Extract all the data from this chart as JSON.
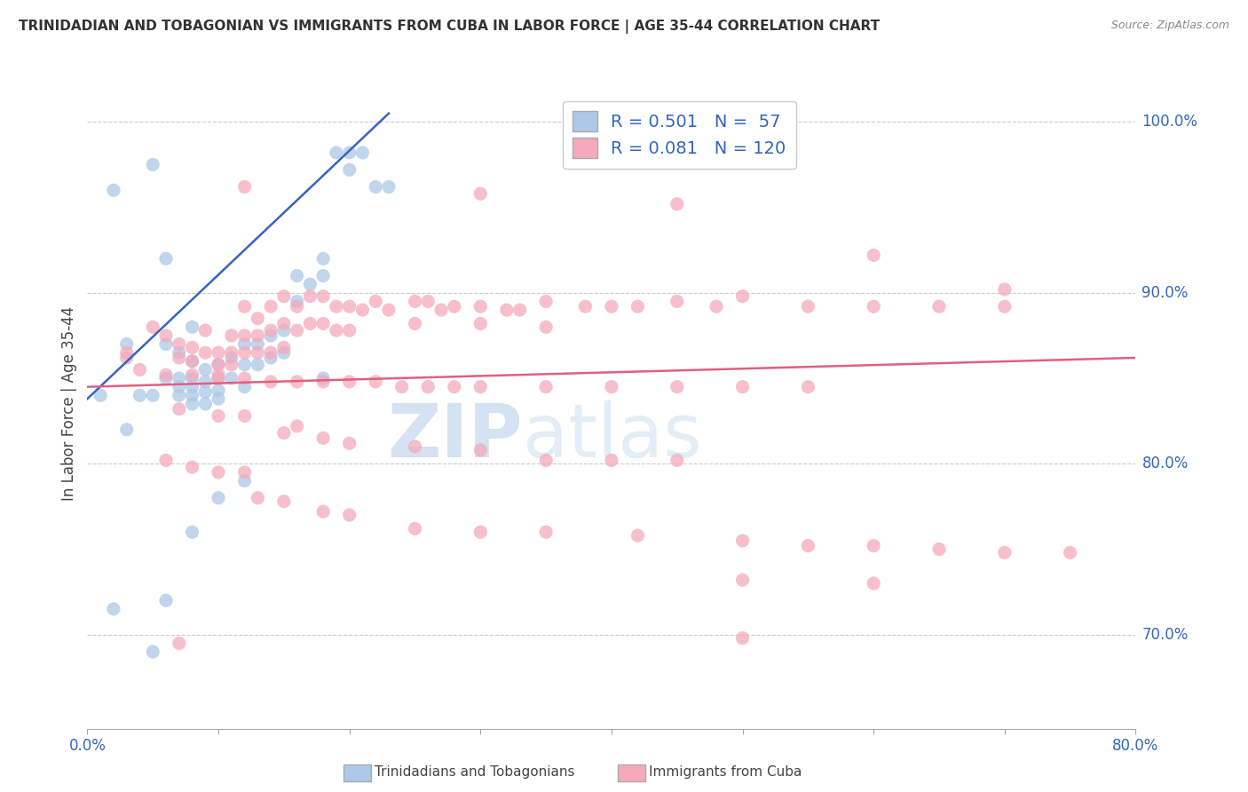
{
  "title": "TRINIDADIAN AND TOBAGONIAN VS IMMIGRANTS FROM CUBA IN LABOR FORCE | AGE 35-44 CORRELATION CHART",
  "source": "Source: ZipAtlas.com",
  "ylabel": "In Labor Force | Age 35-44",
  "ylabel_right_ticks": [
    "70.0%",
    "80.0%",
    "90.0%",
    "100.0%"
  ],
  "ylabel_right_vals": [
    0.7,
    0.8,
    0.9,
    1.0
  ],
  "blue_R": 0.501,
  "blue_N": 57,
  "pink_R": 0.081,
  "pink_N": 120,
  "blue_color": "#adc8e8",
  "blue_line_color": "#3366bb",
  "pink_color": "#f5aabb",
  "pink_line_color": "#e06080",
  "watermark_zip": "ZIP",
  "watermark_atlas": "atlas",
  "legend_label_blue": "Trinidadians and Tobagonians",
  "legend_label_pink": "Immigrants from Cuba",
  "blue_points": [
    [
      0.01,
      0.84
    ],
    [
      0.02,
      0.96
    ],
    [
      0.03,
      0.87
    ],
    [
      0.03,
      0.82
    ],
    [
      0.04,
      0.84
    ],
    [
      0.05,
      0.975
    ],
    [
      0.05,
      0.84
    ],
    [
      0.06,
      0.92
    ],
    [
      0.06,
      0.87
    ],
    [
      0.06,
      0.85
    ],
    [
      0.07,
      0.865
    ],
    [
      0.07,
      0.85
    ],
    [
      0.07,
      0.845
    ],
    [
      0.07,
      0.84
    ],
    [
      0.08,
      0.88
    ],
    [
      0.08,
      0.86
    ],
    [
      0.08,
      0.85
    ],
    [
      0.08,
      0.845
    ],
    [
      0.08,
      0.84
    ],
    [
      0.08,
      0.835
    ],
    [
      0.09,
      0.855
    ],
    [
      0.09,
      0.848
    ],
    [
      0.09,
      0.842
    ],
    [
      0.09,
      0.835
    ],
    [
      0.1,
      0.858
    ],
    [
      0.1,
      0.85
    ],
    [
      0.1,
      0.843
    ],
    [
      0.1,
      0.838
    ],
    [
      0.11,
      0.862
    ],
    [
      0.11,
      0.85
    ],
    [
      0.12,
      0.87
    ],
    [
      0.12,
      0.858
    ],
    [
      0.12,
      0.845
    ],
    [
      0.13,
      0.87
    ],
    [
      0.13,
      0.858
    ],
    [
      0.14,
      0.862
    ],
    [
      0.14,
      0.875
    ],
    [
      0.15,
      0.878
    ],
    [
      0.15,
      0.865
    ],
    [
      0.16,
      0.91
    ],
    [
      0.16,
      0.895
    ],
    [
      0.17,
      0.905
    ],
    [
      0.18,
      0.92
    ],
    [
      0.18,
      0.91
    ],
    [
      0.19,
      0.982
    ],
    [
      0.2,
      0.982
    ],
    [
      0.2,
      0.972
    ],
    [
      0.21,
      0.982
    ],
    [
      0.22,
      0.962
    ],
    [
      0.23,
      0.962
    ],
    [
      0.06,
      0.72
    ],
    [
      0.08,
      0.76
    ],
    [
      0.1,
      0.78
    ],
    [
      0.12,
      0.79
    ],
    [
      0.05,
      0.69
    ],
    [
      0.02,
      0.715
    ],
    [
      0.18,
      0.85
    ]
  ],
  "pink_points": [
    [
      0.05,
      0.88
    ],
    [
      0.06,
      0.875
    ],
    [
      0.07,
      0.87
    ],
    [
      0.07,
      0.862
    ],
    [
      0.08,
      0.868
    ],
    [
      0.08,
      0.86
    ],
    [
      0.09,
      0.878
    ],
    [
      0.09,
      0.865
    ],
    [
      0.1,
      0.865
    ],
    [
      0.1,
      0.858
    ],
    [
      0.1,
      0.852
    ],
    [
      0.11,
      0.875
    ],
    [
      0.11,
      0.865
    ],
    [
      0.11,
      0.858
    ],
    [
      0.12,
      0.892
    ],
    [
      0.12,
      0.875
    ],
    [
      0.12,
      0.865
    ],
    [
      0.13,
      0.885
    ],
    [
      0.13,
      0.875
    ],
    [
      0.13,
      0.865
    ],
    [
      0.14,
      0.892
    ],
    [
      0.14,
      0.878
    ],
    [
      0.14,
      0.865
    ],
    [
      0.15,
      0.898
    ],
    [
      0.15,
      0.882
    ],
    [
      0.15,
      0.868
    ],
    [
      0.16,
      0.892
    ],
    [
      0.16,
      0.878
    ],
    [
      0.17,
      0.898
    ],
    [
      0.17,
      0.882
    ],
    [
      0.18,
      0.898
    ],
    [
      0.18,
      0.882
    ],
    [
      0.19,
      0.892
    ],
    [
      0.19,
      0.878
    ],
    [
      0.2,
      0.892
    ],
    [
      0.2,
      0.878
    ],
    [
      0.21,
      0.89
    ],
    [
      0.22,
      0.895
    ],
    [
      0.23,
      0.89
    ],
    [
      0.25,
      0.895
    ],
    [
      0.25,
      0.882
    ],
    [
      0.26,
      0.895
    ],
    [
      0.27,
      0.89
    ],
    [
      0.28,
      0.892
    ],
    [
      0.3,
      0.892
    ],
    [
      0.3,
      0.882
    ],
    [
      0.32,
      0.89
    ],
    [
      0.33,
      0.89
    ],
    [
      0.35,
      0.895
    ],
    [
      0.35,
      0.88
    ],
    [
      0.38,
      0.892
    ],
    [
      0.4,
      0.892
    ],
    [
      0.42,
      0.892
    ],
    [
      0.45,
      0.895
    ],
    [
      0.48,
      0.892
    ],
    [
      0.5,
      0.898
    ],
    [
      0.55,
      0.892
    ],
    [
      0.6,
      0.892
    ],
    [
      0.65,
      0.892
    ],
    [
      0.7,
      0.892
    ],
    [
      0.03,
      0.862
    ],
    [
      0.04,
      0.855
    ],
    [
      0.06,
      0.852
    ],
    [
      0.08,
      0.852
    ],
    [
      0.1,
      0.85
    ],
    [
      0.12,
      0.85
    ],
    [
      0.14,
      0.848
    ],
    [
      0.16,
      0.848
    ],
    [
      0.18,
      0.848
    ],
    [
      0.2,
      0.848
    ],
    [
      0.22,
      0.848
    ],
    [
      0.24,
      0.845
    ],
    [
      0.26,
      0.845
    ],
    [
      0.28,
      0.845
    ],
    [
      0.3,
      0.845
    ],
    [
      0.35,
      0.845
    ],
    [
      0.4,
      0.845
    ],
    [
      0.45,
      0.845
    ],
    [
      0.5,
      0.845
    ],
    [
      0.55,
      0.845
    ],
    [
      0.07,
      0.832
    ],
    [
      0.1,
      0.828
    ],
    [
      0.12,
      0.828
    ],
    [
      0.15,
      0.818
    ],
    [
      0.16,
      0.822
    ],
    [
      0.18,
      0.815
    ],
    [
      0.2,
      0.812
    ],
    [
      0.25,
      0.81
    ],
    [
      0.3,
      0.808
    ],
    [
      0.35,
      0.802
    ],
    [
      0.4,
      0.802
    ],
    [
      0.45,
      0.802
    ],
    [
      0.06,
      0.802
    ],
    [
      0.08,
      0.798
    ],
    [
      0.1,
      0.795
    ],
    [
      0.12,
      0.795
    ],
    [
      0.13,
      0.78
    ],
    [
      0.15,
      0.778
    ],
    [
      0.18,
      0.772
    ],
    [
      0.2,
      0.77
    ],
    [
      0.25,
      0.762
    ],
    [
      0.3,
      0.76
    ],
    [
      0.35,
      0.76
    ],
    [
      0.42,
      0.758
    ],
    [
      0.5,
      0.755
    ],
    [
      0.55,
      0.752
    ],
    [
      0.6,
      0.752
    ],
    [
      0.65,
      0.75
    ],
    [
      0.7,
      0.748
    ],
    [
      0.75,
      0.748
    ],
    [
      0.5,
      0.732
    ],
    [
      0.6,
      0.73
    ],
    [
      0.12,
      0.962
    ],
    [
      0.3,
      0.958
    ],
    [
      0.45,
      0.952
    ],
    [
      0.6,
      0.922
    ],
    [
      0.7,
      0.902
    ],
    [
      0.5,
      0.698
    ],
    [
      0.07,
      0.695
    ],
    [
      0.03,
      0.865
    ]
  ],
  "blue_line": [
    [
      0.0,
      0.838
    ],
    [
      0.23,
      1.005
    ]
  ],
  "pink_line": [
    [
      0.0,
      0.845
    ],
    [
      0.8,
      0.862
    ]
  ],
  "xlim": [
    0.0,
    0.8
  ],
  "ylim": [
    0.645,
    1.025
  ],
  "xtick_positions": [
    0.0,
    0.1,
    0.2,
    0.3,
    0.4,
    0.5,
    0.6,
    0.7,
    0.8
  ],
  "background_color": "#ffffff",
  "grid_color": "#cccccc"
}
